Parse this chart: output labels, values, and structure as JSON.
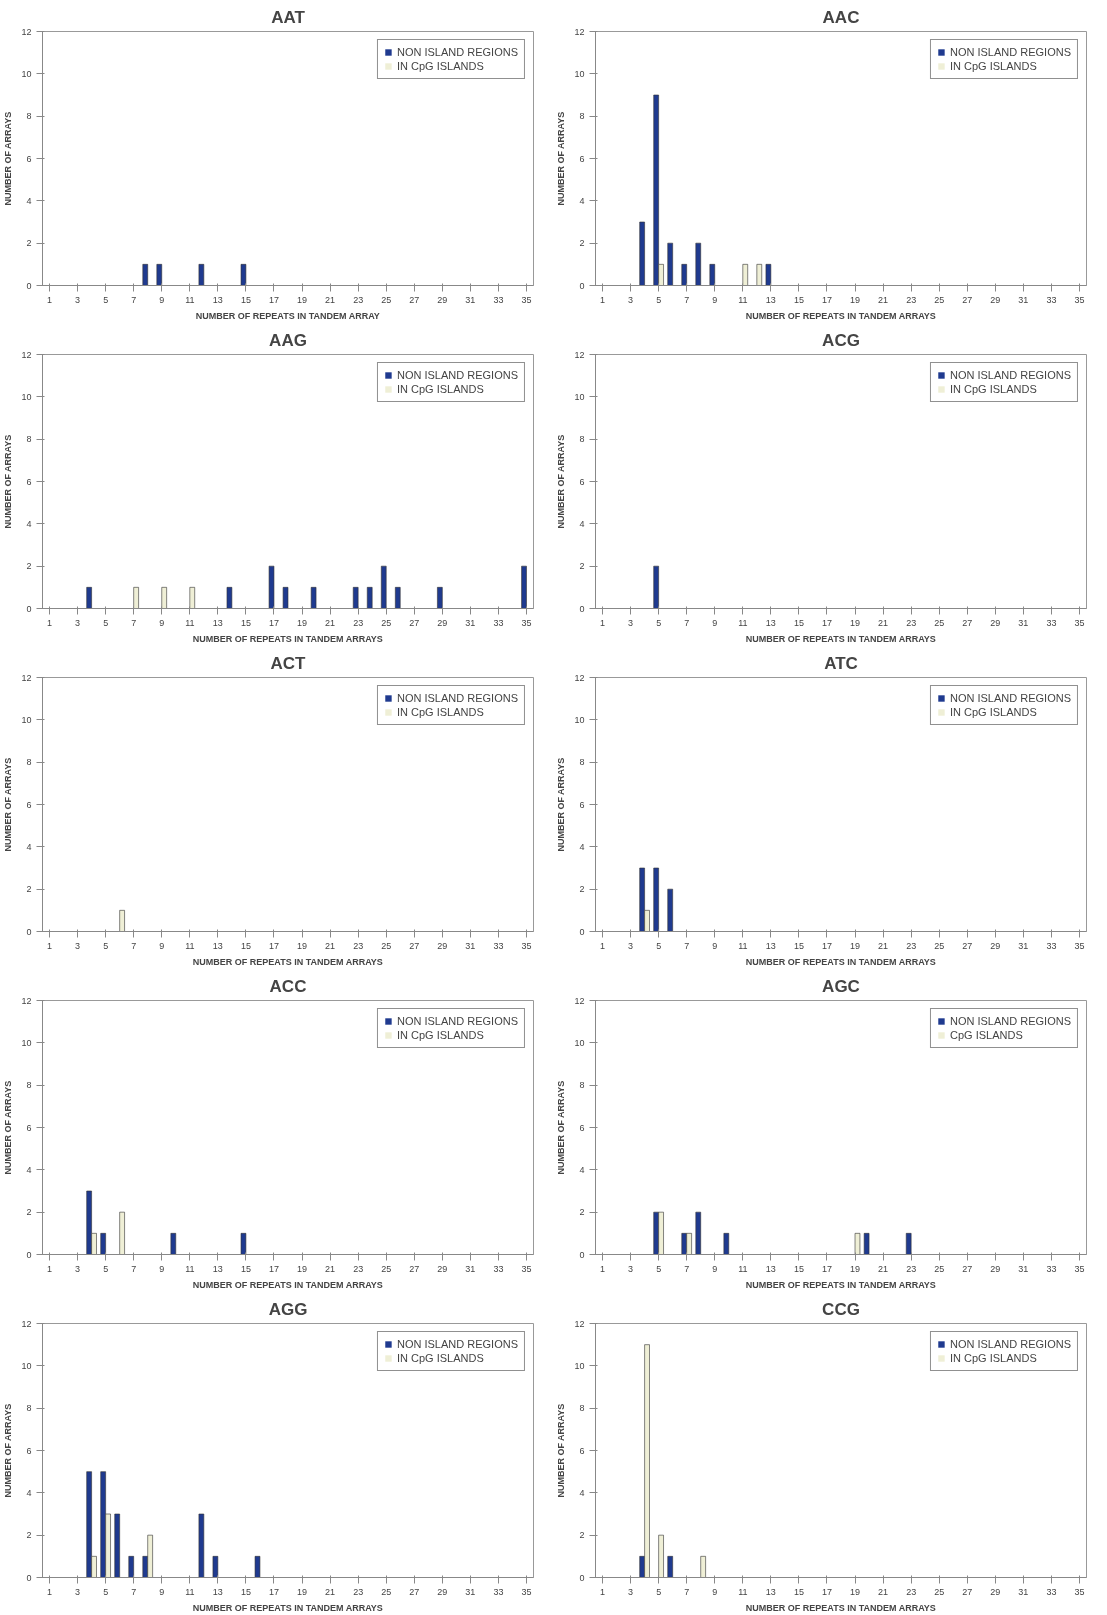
{
  "chart_data": [
    {
      "type": "bar",
      "title": "AAT",
      "xlabel": "NUMBER OF REPEATS IN TANDEM ARRAY",
      "ylabel": "NUMBER OF ARRAYS",
      "x": [
        1,
        2,
        3,
        4,
        5,
        6,
        7,
        8,
        9,
        10,
        11,
        12,
        13,
        14,
        15,
        16,
        17,
        18,
        19,
        20,
        21,
        22,
        23,
        24,
        25,
        26,
        27,
        28,
        29,
        30,
        31,
        32,
        33,
        34,
        35
      ],
      "xlim": [
        0.5,
        35.5
      ],
      "xticks": [
        1,
        3,
        5,
        7,
        9,
        11,
        13,
        15,
        17,
        19,
        21,
        23,
        25,
        27,
        29,
        31,
        33,
        35
      ],
      "ylim": [
        0,
        12
      ],
      "yticks": [
        0,
        2,
        4,
        6,
        8,
        10,
        12
      ],
      "grid": false,
      "legend": "top right",
      "series": [
        {
          "name": "NON ISLAND REGIONS",
          "color": "#1f3a8f",
          "values": [
            0,
            0,
            0,
            0,
            0,
            0,
            0,
            1,
            1,
            0,
            0,
            1,
            0,
            0,
            1,
            0,
            0,
            0,
            0,
            0,
            0,
            0,
            0,
            0,
            0,
            0,
            0,
            0,
            0,
            0,
            0,
            0,
            0,
            0,
            0
          ]
        },
        {
          "name": "IN CpG ISLANDS",
          "color": "#efefd6",
          "values": [
            0,
            0,
            0,
            0,
            0,
            0,
            0,
            0,
            0,
            0,
            0,
            0,
            0,
            0,
            0,
            0,
            0,
            0,
            0,
            0,
            0,
            0,
            0,
            0,
            0,
            0,
            0,
            0,
            0,
            0,
            0,
            0,
            0,
            0,
            0
          ]
        }
      ]
    },
    {
      "type": "bar",
      "title": "AAC",
      "xlabel": "NUMBER OF REPEATS IN TANDEM ARRAYS",
      "ylabel": "NUMBER OF ARRAYS",
      "x": [
        1,
        2,
        3,
        4,
        5,
        6,
        7,
        8,
        9,
        10,
        11,
        12,
        13,
        14,
        15,
        16,
        17,
        18,
        19,
        20,
        21,
        22,
        23,
        24,
        25,
        26,
        27,
        28,
        29,
        30,
        31,
        32,
        33,
        34,
        35
      ],
      "xlim": [
        0.5,
        35.5
      ],
      "xticks": [
        1,
        3,
        5,
        7,
        9,
        11,
        13,
        15,
        17,
        19,
        21,
        23,
        25,
        27,
        29,
        31,
        33,
        35
      ],
      "ylim": [
        0,
        12
      ],
      "yticks": [
        0,
        2,
        4,
        6,
        8,
        10,
        12
      ],
      "grid": false,
      "legend": "top right",
      "series": [
        {
          "name": "NON ISLAND REGIONS",
          "color": "#1f3a8f",
          "values": [
            0,
            0,
            0,
            3,
            9,
            2,
            1,
            2,
            1,
            0,
            0,
            0,
            1,
            0,
            0,
            0,
            0,
            0,
            0,
            0,
            0,
            0,
            0,
            0,
            0,
            0,
            0,
            0,
            0,
            0,
            0,
            0,
            0,
            0,
            0
          ]
        },
        {
          "name": "IN CpG ISLANDS",
          "color": "#efefd6",
          "values": [
            0,
            0,
            0,
            0,
            1,
            0,
            0,
            0,
            0,
            0,
            1,
            1,
            0,
            0,
            0,
            0,
            0,
            0,
            0,
            0,
            0,
            0,
            0,
            0,
            0,
            0,
            0,
            0,
            0,
            0,
            0,
            0,
            0,
            0,
            0
          ]
        }
      ]
    },
    {
      "type": "bar",
      "title": "AAG",
      "xlabel": "NUMBER OF REPEATS IN TANDEM ARRAYS",
      "ylabel": "NUMBER OF ARRAYS",
      "x": [
        1,
        2,
        3,
        4,
        5,
        6,
        7,
        8,
        9,
        10,
        11,
        12,
        13,
        14,
        15,
        16,
        17,
        18,
        19,
        20,
        21,
        22,
        23,
        24,
        25,
        26,
        27,
        28,
        29,
        30,
        31,
        32,
        33,
        34,
        35
      ],
      "xlim": [
        0.5,
        35.5
      ],
      "xticks": [
        1,
        3,
        5,
        7,
        9,
        11,
        13,
        15,
        17,
        19,
        21,
        23,
        25,
        27,
        29,
        31,
        33,
        35
      ],
      "ylim": [
        0,
        12
      ],
      "yticks": [
        0,
        2,
        4,
        6,
        8,
        10,
        12
      ],
      "grid": false,
      "legend": "top right",
      "series": [
        {
          "name": "NON ISLAND REGIONS",
          "color": "#1f3a8f",
          "values": [
            0,
            0,
            0,
            1,
            0,
            0,
            0,
            0,
            0,
            0,
            0,
            0,
            0,
            1,
            0,
            0,
            2,
            1,
            0,
            1,
            0,
            0,
            1,
            1,
            2,
            1,
            0,
            0,
            1,
            0,
            0,
            0,
            0,
            0,
            2
          ]
        },
        {
          "name": "IN CpG ISLANDS",
          "color": "#efefd6",
          "values": [
            0,
            0,
            0,
            0,
            0,
            0,
            1,
            0,
            1,
            0,
            1,
            0,
            0,
            0,
            0,
            0,
            0,
            0,
            0,
            0,
            0,
            0,
            0,
            0,
            0,
            0,
            0,
            0,
            0,
            0,
            0,
            0,
            0,
            0,
            0
          ]
        }
      ]
    },
    {
      "type": "bar",
      "title": "ACG",
      "xlabel": "NUMBER OF REPEATS IN TANDEM ARRAYS",
      "ylabel": "NUMBER OF ARRAYS",
      "x": [
        1,
        2,
        3,
        4,
        5,
        6,
        7,
        8,
        9,
        10,
        11,
        12,
        13,
        14,
        15,
        16,
        17,
        18,
        19,
        20,
        21,
        22,
        23,
        24,
        25,
        26,
        27,
        28,
        29,
        30,
        31,
        32,
        33,
        34,
        35
      ],
      "xlim": [
        0.5,
        35.5
      ],
      "xticks": [
        1,
        3,
        5,
        7,
        9,
        11,
        13,
        15,
        17,
        19,
        21,
        23,
        25,
        27,
        29,
        31,
        33,
        35
      ],
      "ylim": [
        0,
        12
      ],
      "yticks": [
        0,
        2,
        4,
        6,
        8,
        10,
        12
      ],
      "grid": false,
      "legend": "top right",
      "series": [
        {
          "name": "NON ISLAND REGIONS",
          "color": "#1f3a8f",
          "values": [
            0,
            0,
            0,
            0,
            2,
            0,
            0,
            0,
            0,
            0,
            0,
            0,
            0,
            0,
            0,
            0,
            0,
            0,
            0,
            0,
            0,
            0,
            0,
            0,
            0,
            0,
            0,
            0,
            0,
            0,
            0,
            0,
            0,
            0,
            0
          ]
        },
        {
          "name": "IN CpG ISLANDS",
          "color": "#efefd6",
          "values": [
            0,
            0,
            0,
            0,
            0,
            0,
            0,
            0,
            0,
            0,
            0,
            0,
            0,
            0,
            0,
            0,
            0,
            0,
            0,
            0,
            0,
            0,
            0,
            0,
            0,
            0,
            0,
            0,
            0,
            0,
            0,
            0,
            0,
            0,
            0
          ]
        }
      ]
    },
    {
      "type": "bar",
      "title": "ACT",
      "xlabel": "NUMBER OF REPEATS IN TANDEM ARRAYS",
      "ylabel": "NUMBER OF ARRAYS",
      "x": [
        1,
        2,
        3,
        4,
        5,
        6,
        7,
        8,
        9,
        10,
        11,
        12,
        13,
        14,
        15,
        16,
        17,
        18,
        19,
        20,
        21,
        22,
        23,
        24,
        25,
        26,
        27,
        28,
        29,
        30,
        31,
        32,
        33,
        34,
        35
      ],
      "xlim": [
        0.5,
        35.5
      ],
      "xticks": [
        1,
        3,
        5,
        7,
        9,
        11,
        13,
        15,
        17,
        19,
        21,
        23,
        25,
        27,
        29,
        31,
        33,
        35
      ],
      "ylim": [
        0,
        12
      ],
      "yticks": [
        0,
        2,
        4,
        6,
        8,
        10,
        12
      ],
      "grid": false,
      "legend": "top right",
      "series": [
        {
          "name": "NON ISLAND REGIONS",
          "color": "#1f3a8f",
          "values": [
            0,
            0,
            0,
            0,
            0,
            0,
            0,
            0,
            0,
            0,
            0,
            0,
            0,
            0,
            0,
            0,
            0,
            0,
            0,
            0,
            0,
            0,
            0,
            0,
            0,
            0,
            0,
            0,
            0,
            0,
            0,
            0,
            0,
            0,
            0
          ]
        },
        {
          "name": "IN CpG ISLANDS",
          "color": "#efefd6",
          "values": [
            0,
            0,
            0,
            0,
            0,
            1,
            0,
            0,
            0,
            0,
            0,
            0,
            0,
            0,
            0,
            0,
            0,
            0,
            0,
            0,
            0,
            0,
            0,
            0,
            0,
            0,
            0,
            0,
            0,
            0,
            0,
            0,
            0,
            0,
            0
          ]
        }
      ]
    },
    {
      "type": "bar",
      "title": "ATC",
      "xlabel": "NUMBER OF REPEATS IN TANDEM ARRAYS",
      "ylabel": "NUMBER OF ARRAYS",
      "x": [
        1,
        2,
        3,
        4,
        5,
        6,
        7,
        8,
        9,
        10,
        11,
        12,
        13,
        14,
        15,
        16,
        17,
        18,
        19,
        20,
        21,
        22,
        23,
        24,
        25,
        26,
        27,
        28,
        29,
        30,
        31,
        32,
        33,
        34,
        35
      ],
      "xlim": [
        0.5,
        35.5
      ],
      "xticks": [
        1,
        3,
        5,
        7,
        9,
        11,
        13,
        15,
        17,
        19,
        21,
        23,
        25,
        27,
        29,
        31,
        33,
        35
      ],
      "ylim": [
        0,
        12
      ],
      "yticks": [
        0,
        2,
        4,
        6,
        8,
        10,
        12
      ],
      "grid": false,
      "legend": "top right",
      "series": [
        {
          "name": "NON ISLAND REGIONS",
          "color": "#1f3a8f",
          "values": [
            0,
            0,
            0,
            3,
            3,
            2,
            0,
            0,
            0,
            0,
            0,
            0,
            0,
            0,
            0,
            0,
            0,
            0,
            0,
            0,
            0,
            0,
            0,
            0,
            0,
            0,
            0,
            0,
            0,
            0,
            0,
            0,
            0,
            0,
            0
          ]
        },
        {
          "name": "IN CpG ISLANDS",
          "color": "#efefd6",
          "values": [
            0,
            0,
            0,
            1,
            0,
            0,
            0,
            0,
            0,
            0,
            0,
            0,
            0,
            0,
            0,
            0,
            0,
            0,
            0,
            0,
            0,
            0,
            0,
            0,
            0,
            0,
            0,
            0,
            0,
            0,
            0,
            0,
            0,
            0,
            0
          ]
        }
      ]
    },
    {
      "type": "bar",
      "title": "ACC",
      "xlabel": "NUMBER OF REPEATS IN TANDEM ARRAYS",
      "ylabel": "NUMBER OF ARRAYS",
      "x": [
        1,
        2,
        3,
        4,
        5,
        6,
        7,
        8,
        9,
        10,
        11,
        12,
        13,
        14,
        15,
        16,
        17,
        18,
        19,
        20,
        21,
        22,
        23,
        24,
        25,
        26,
        27,
        28,
        29,
        30,
        31,
        32,
        33,
        34,
        35
      ],
      "xlim": [
        0.5,
        35.5
      ],
      "xticks": [
        1,
        3,
        5,
        7,
        9,
        11,
        13,
        15,
        17,
        19,
        21,
        23,
        25,
        27,
        29,
        31,
        33,
        35
      ],
      "ylim": [
        0,
        12
      ],
      "yticks": [
        0,
        2,
        4,
        6,
        8,
        10,
        12
      ],
      "grid": false,
      "legend": "top right",
      "series": [
        {
          "name": "NON ISLAND REGIONS",
          "color": "#1f3a8f",
          "values": [
            0,
            0,
            0,
            3,
            1,
            0,
            0,
            0,
            0,
            1,
            0,
            0,
            0,
            0,
            1,
            0,
            0,
            0,
            0,
            0,
            0,
            0,
            0,
            0,
            0,
            0,
            0,
            0,
            0,
            0,
            0,
            0,
            0,
            0,
            0
          ]
        },
        {
          "name": "IN CpG ISLANDS",
          "color": "#efefd6",
          "values": [
            0,
            0,
            0,
            1,
            0,
            2,
            0,
            0,
            0,
            0,
            0,
            0,
            0,
            0,
            0,
            0,
            0,
            0,
            0,
            0,
            0,
            0,
            0,
            0,
            0,
            0,
            0,
            0,
            0,
            0,
            0,
            0,
            0,
            0,
            0
          ]
        }
      ]
    },
    {
      "type": "bar",
      "title": "AGC",
      "xlabel": "NUMBER OF REPEATS IN TANDEM ARRAYS",
      "ylabel": "NUMBER OF ARRAYS",
      "x": [
        1,
        2,
        3,
        4,
        5,
        6,
        7,
        8,
        9,
        10,
        11,
        12,
        13,
        14,
        15,
        16,
        17,
        18,
        19,
        20,
        21,
        22,
        23,
        24,
        25,
        26,
        27,
        28,
        29,
        30,
        31,
        32,
        33,
        34,
        35
      ],
      "xlim": [
        0.5,
        35.5
      ],
      "xticks": [
        1,
        3,
        5,
        7,
        9,
        11,
        13,
        15,
        17,
        19,
        21,
        23,
        25,
        27,
        29,
        31,
        33,
        35
      ],
      "ylim": [
        0,
        12
      ],
      "yticks": [
        0,
        2,
        4,
        6,
        8,
        10,
        12
      ],
      "grid": false,
      "legend": "top right",
      "series": [
        {
          "name": "NON ISLAND REGIONS",
          "color": "#1f3a8f",
          "values": [
            0,
            0,
            0,
            0,
            2,
            0,
            1,
            2,
            0,
            1,
            0,
            0,
            0,
            0,
            0,
            0,
            0,
            0,
            0,
            1,
            0,
            0,
            1,
            0,
            0,
            0,
            0,
            0,
            0,
            0,
            0,
            0,
            0,
            0,
            0
          ]
        },
        {
          "name": "CpG ISLANDS",
          "color": "#efefd6",
          "values": [
            0,
            0,
            0,
            0,
            2,
            0,
            1,
            0,
            0,
            0,
            0,
            0,
            0,
            0,
            0,
            0,
            0,
            0,
            1,
            0,
            0,
            0,
            0,
            0,
            0,
            0,
            0,
            0,
            0,
            0,
            0,
            0,
            0,
            0,
            0
          ]
        }
      ]
    },
    {
      "type": "bar",
      "title": "AGG",
      "xlabel": "NUMBER OF REPEATS IN TANDEM ARRAYS",
      "ylabel": "NUMBER OF ARRAYS",
      "x": [
        1,
        2,
        3,
        4,
        5,
        6,
        7,
        8,
        9,
        10,
        11,
        12,
        13,
        14,
        15,
        16,
        17,
        18,
        19,
        20,
        21,
        22,
        23,
        24,
        25,
        26,
        27,
        28,
        29,
        30,
        31,
        32,
        33,
        34,
        35
      ],
      "xlim": [
        0.5,
        35.5
      ],
      "xticks": [
        1,
        3,
        5,
        7,
        9,
        11,
        13,
        15,
        17,
        19,
        21,
        23,
        25,
        27,
        29,
        31,
        33,
        35
      ],
      "ylim": [
        0,
        12
      ],
      "yticks": [
        0,
        2,
        4,
        6,
        8,
        10,
        12
      ],
      "grid": false,
      "legend": "top right",
      "series": [
        {
          "name": "NON ISLAND REGIONS",
          "color": "#1f3a8f",
          "values": [
            0,
            0,
            0,
            5,
            5,
            3,
            1,
            1,
            0,
            0,
            0,
            3,
            1,
            0,
            0,
            1,
            0,
            0,
            0,
            0,
            0,
            0,
            0,
            0,
            0,
            0,
            0,
            0,
            0,
            0,
            0,
            0,
            0,
            0,
            0
          ]
        },
        {
          "name": "IN CpG ISLANDS",
          "color": "#efefd6",
          "values": [
            0,
            0,
            0,
            1,
            3,
            0,
            0,
            2,
            0,
            0,
            0,
            0,
            0,
            0,
            0,
            0,
            0,
            0,
            0,
            0,
            0,
            0,
            0,
            0,
            0,
            0,
            0,
            0,
            0,
            0,
            0,
            0,
            0,
            0,
            0
          ]
        }
      ]
    },
    {
      "type": "bar",
      "title": "CCG",
      "xlabel": "NUMBER OF REPEATS IN TANDEM ARRAYS",
      "ylabel": "NUMBER OF ARRAYS",
      "x": [
        1,
        2,
        3,
        4,
        5,
        6,
        7,
        8,
        9,
        10,
        11,
        12,
        13,
        14,
        15,
        16,
        17,
        18,
        19,
        20,
        21,
        22,
        23,
        24,
        25,
        26,
        27,
        28,
        29,
        30,
        31,
        32,
        33,
        34,
        35
      ],
      "xlim": [
        0.5,
        35.5
      ],
      "xticks": [
        1,
        3,
        5,
        7,
        9,
        11,
        13,
        15,
        17,
        19,
        21,
        23,
        25,
        27,
        29,
        31,
        33,
        35
      ],
      "ylim": [
        0,
        12
      ],
      "yticks": [
        0,
        2,
        4,
        6,
        8,
        10,
        12
      ],
      "grid": false,
      "legend": "top right",
      "series": [
        {
          "name": "NON ISLAND REGIONS",
          "color": "#1f3a8f",
          "values": [
            0,
            0,
            0,
            1,
            0,
            1,
            0,
            0,
            0,
            0,
            0,
            0,
            0,
            0,
            0,
            0,
            0,
            0,
            0,
            0,
            0,
            0,
            0,
            0,
            0,
            0,
            0,
            0,
            0,
            0,
            0,
            0,
            0,
            0,
            0
          ]
        },
        {
          "name": "IN CpG ISLANDS",
          "color": "#efefd6",
          "values": [
            0,
            0,
            0,
            11,
            2,
            0,
            0,
            1,
            0,
            0,
            0,
            0,
            0,
            0,
            0,
            0,
            0,
            0,
            0,
            0,
            0,
            0,
            0,
            0,
            0,
            0,
            0,
            0,
            0,
            0,
            0,
            0,
            0,
            0,
            0
          ]
        }
      ]
    }
  ]
}
